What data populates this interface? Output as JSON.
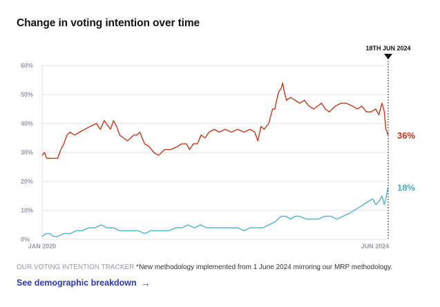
{
  "header": {
    "title": "Change in voting intention over time"
  },
  "footer": {
    "tracker_label": "OUR VOTING INTENTION TRACKER",
    "note": "*New methodology implemented from 1 June 2024 mirroring our MRP methodology.",
    "cta_label": "See demographic breakdown",
    "cta_arrow": "→"
  },
  "colors": {
    "red": "#c0391b",
    "blue": "#4fb0cc",
    "grid": "#e2e2e6",
    "cta": "#2f3ab0"
  },
  "chart_data": {
    "type": "line",
    "title": "Change in voting intention over time",
    "xlabel": "",
    "ylabel": "",
    "ylim": [
      0,
      60
    ],
    "yticks": [
      0,
      10,
      20,
      30,
      40,
      50,
      60
    ],
    "ytick_labels": [
      "0%",
      "10%",
      "20%",
      "30%",
      "40%",
      "50%",
      "60%"
    ],
    "x_labels": [
      "JAN 2020",
      "JUN 2024"
    ],
    "xlim": [
      2020.0,
      2024.46
    ],
    "marker": {
      "label": "18TH JUN 2024",
      "x": 2024.46
    },
    "series": [
      {
        "name": "red",
        "color": "#c0391b",
        "end_label": "36%",
        "points": [
          [
            2020.0,
            29
          ],
          [
            2020.03,
            30
          ],
          [
            2020.06,
            28
          ],
          [
            2020.12,
            28
          ],
          [
            2020.2,
            28
          ],
          [
            2020.24,
            31
          ],
          [
            2020.28,
            33
          ],
          [
            2020.32,
            36
          ],
          [
            2020.36,
            37
          ],
          [
            2020.42,
            36
          ],
          [
            2020.48,
            37
          ],
          [
            2020.55,
            38
          ],
          [
            2020.62,
            39
          ],
          [
            2020.7,
            40
          ],
          [
            2020.75,
            38
          ],
          [
            2020.8,
            41
          ],
          [
            2020.88,
            38
          ],
          [
            2020.92,
            41
          ],
          [
            2020.96,
            39
          ],
          [
            2021.0,
            36
          ],
          [
            2021.05,
            35
          ],
          [
            2021.1,
            34
          ],
          [
            2021.18,
            36
          ],
          [
            2021.22,
            36
          ],
          [
            2021.26,
            37
          ],
          [
            2021.32,
            33
          ],
          [
            2021.38,
            32
          ],
          [
            2021.44,
            30
          ],
          [
            2021.5,
            29
          ],
          [
            2021.58,
            31
          ],
          [
            2021.66,
            31
          ],
          [
            2021.74,
            32
          ],
          [
            2021.8,
            33
          ],
          [
            2021.86,
            33
          ],
          [
            2021.9,
            31
          ],
          [
            2021.95,
            33
          ],
          [
            2022.0,
            33
          ],
          [
            2022.05,
            36
          ],
          [
            2022.1,
            35
          ],
          [
            2022.15,
            37
          ],
          [
            2022.22,
            38
          ],
          [
            2022.28,
            37
          ],
          [
            2022.36,
            38
          ],
          [
            2022.44,
            37
          ],
          [
            2022.52,
            38
          ],
          [
            2022.6,
            37
          ],
          [
            2022.68,
            38
          ],
          [
            2022.74,
            37
          ],
          [
            2022.78,
            34
          ],
          [
            2022.82,
            39
          ],
          [
            2022.86,
            38
          ],
          [
            2022.92,
            40
          ],
          [
            2022.97,
            45
          ],
          [
            2023.0,
            45
          ],
          [
            2023.03,
            49
          ],
          [
            2023.05,
            51
          ],
          [
            2023.08,
            52
          ],
          [
            2023.1,
            54
          ],
          [
            2023.12,
            51
          ],
          [
            2023.15,
            48
          ],
          [
            2023.2,
            49
          ],
          [
            2023.26,
            48
          ],
          [
            2023.32,
            47
          ],
          [
            2023.38,
            48
          ],
          [
            2023.44,
            46
          ],
          [
            2023.5,
            45
          ],
          [
            2023.55,
            46
          ],
          [
            2023.6,
            47
          ],
          [
            2023.65,
            45
          ],
          [
            2023.7,
            44
          ],
          [
            2023.78,
            46
          ],
          [
            2023.85,
            47
          ],
          [
            2023.92,
            47
          ],
          [
            2024.0,
            46
          ],
          [
            2024.06,
            45
          ],
          [
            2024.12,
            46
          ],
          [
            2024.18,
            44
          ],
          [
            2024.24,
            44
          ],
          [
            2024.3,
            45
          ],
          [
            2024.34,
            43
          ],
          [
            2024.38,
            47
          ],
          [
            2024.41,
            44
          ],
          [
            2024.43,
            38
          ],
          [
            2024.46,
            36
          ]
        ]
      },
      {
        "name": "blue",
        "color": "#4fb0cc",
        "end_label": "18%",
        "points": [
          [
            2020.0,
            1
          ],
          [
            2020.05,
            2
          ],
          [
            2020.1,
            2
          ],
          [
            2020.15,
            1
          ],
          [
            2020.2,
            1
          ],
          [
            2020.28,
            2
          ],
          [
            2020.36,
            2
          ],
          [
            2020.44,
            3
          ],
          [
            2020.52,
            3
          ],
          [
            2020.6,
            4
          ],
          [
            2020.68,
            4
          ],
          [
            2020.76,
            5
          ],
          [
            2020.84,
            4
          ],
          [
            2020.92,
            4
          ],
          [
            2021.0,
            3
          ],
          [
            2021.08,
            3
          ],
          [
            2021.16,
            3
          ],
          [
            2021.24,
            3
          ],
          [
            2021.32,
            2
          ],
          [
            2021.4,
            3
          ],
          [
            2021.48,
            3
          ],
          [
            2021.56,
            3
          ],
          [
            2021.64,
            3
          ],
          [
            2021.72,
            4
          ],
          [
            2021.8,
            4
          ],
          [
            2021.88,
            5
          ],
          [
            2021.96,
            4
          ],
          [
            2022.04,
            5
          ],
          [
            2022.12,
            4
          ],
          [
            2022.2,
            4
          ],
          [
            2022.28,
            4
          ],
          [
            2022.36,
            4
          ],
          [
            2022.44,
            4
          ],
          [
            2022.52,
            4
          ],
          [
            2022.6,
            3
          ],
          [
            2022.68,
            4
          ],
          [
            2022.76,
            4
          ],
          [
            2022.84,
            4
          ],
          [
            2022.92,
            5
          ],
          [
            2023.0,
            6
          ],
          [
            2023.04,
            7
          ],
          [
            2023.08,
            8
          ],
          [
            2023.14,
            8
          ],
          [
            2023.2,
            7
          ],
          [
            2023.26,
            8
          ],
          [
            2023.32,
            8
          ],
          [
            2023.4,
            7
          ],
          [
            2023.48,
            7
          ],
          [
            2023.56,
            7
          ],
          [
            2023.64,
            8
          ],
          [
            2023.72,
            8
          ],
          [
            2023.8,
            7
          ],
          [
            2023.88,
            8
          ],
          [
            2023.96,
            9
          ],
          [
            2024.02,
            10
          ],
          [
            2024.08,
            11
          ],
          [
            2024.14,
            12
          ],
          [
            2024.2,
            13
          ],
          [
            2024.26,
            14
          ],
          [
            2024.3,
            12
          ],
          [
            2024.34,
            13
          ],
          [
            2024.38,
            15
          ],
          [
            2024.41,
            12
          ],
          [
            2024.43,
            14
          ],
          [
            2024.45,
            17
          ],
          [
            2024.46,
            18
          ]
        ]
      }
    ]
  }
}
